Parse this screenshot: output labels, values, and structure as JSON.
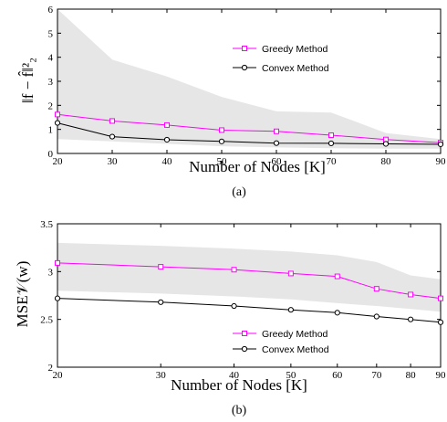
{
  "chart_data": [
    {
      "type": "line",
      "caption": "(a)",
      "xlabel": "Number of Nodes [K]",
      "ylabel": "‖f − f̂‖²₂",
      "x": [
        20,
        30,
        40,
        50,
        60,
        70,
        80,
        90
      ],
      "x_ticks": [
        20,
        30,
        40,
        50,
        60,
        70,
        80,
        90
      ],
      "x_scale": "linear",
      "ylim": [
        0,
        6
      ],
      "y_ticks": [
        0,
        1,
        2,
        3,
        4,
        5,
        6
      ],
      "legend_position": "top-right",
      "band": {
        "color": "#e6e6e6",
        "upper": [
          6.0,
          3.9,
          3.2,
          2.35,
          1.75,
          1.7,
          0.85,
          0.6
        ],
        "lower": [
          0.6,
          0.5,
          0.4,
          0.3,
          0.25,
          0.22,
          0.2,
          0.2
        ]
      },
      "series": [
        {
          "name": "Greedy Method",
          "color": "#ff00ff",
          "marker": "square",
          "values": [
            1.62,
            1.35,
            1.18,
            0.97,
            0.92,
            0.76,
            0.58,
            0.45
          ]
        },
        {
          "name": "Convex Method",
          "color": "#000000",
          "marker": "circle",
          "values": [
            1.27,
            0.7,
            0.57,
            0.5,
            0.43,
            0.42,
            0.4,
            0.38
          ]
        }
      ]
    },
    {
      "type": "line",
      "caption": "(b)",
      "xlabel": "Number of Nodes [K]",
      "ylabel": "MSE𝒱(w)",
      "x": [
        20,
        30,
        40,
        50,
        60,
        70,
        80,
        90
      ],
      "x_ticks": [
        20,
        30,
        40,
        50,
        60,
        70,
        80,
        90
      ],
      "x_scale": "log",
      "ylim": [
        2,
        3.5
      ],
      "y_ticks": [
        "2",
        "2.5",
        "3",
        "3.5"
      ],
      "legend_position": "bottom-right",
      "band": {
        "color": "#e6e6e6",
        "upper": [
          3.3,
          3.27,
          3.24,
          3.21,
          3.17,
          3.1,
          2.96,
          2.92
        ],
        "lower": [
          2.8,
          2.77,
          2.74,
          2.71,
          2.67,
          2.64,
          2.61,
          2.58
        ]
      },
      "series": [
        {
          "name": "Greedy Method",
          "color": "#ff00ff",
          "marker": "square",
          "values": [
            3.09,
            3.05,
            3.02,
            2.98,
            2.95,
            2.82,
            2.76,
            2.72
          ]
        },
        {
          "name": "Convex Method",
          "color": "#000000",
          "marker": "circle",
          "values": [
            2.72,
            2.68,
            2.64,
            2.6,
            2.57,
            2.53,
            2.5,
            2.47
          ]
        }
      ]
    }
  ]
}
